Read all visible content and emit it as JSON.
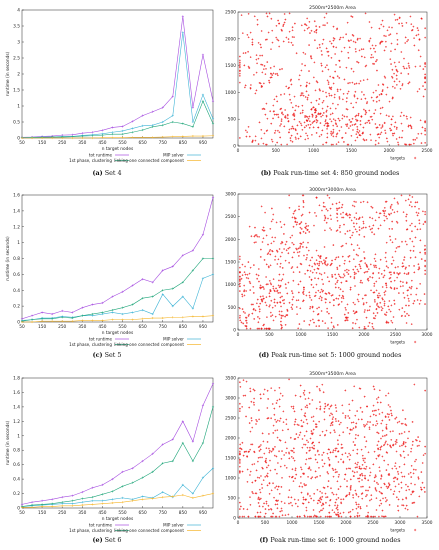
{
  "colors": {
    "tot_runtime": "#a54ce0",
    "mip_solver": "#3fb4d6",
    "clustering": "#20a67a",
    "linking": "#f5b52a",
    "targets": "#ee2222",
    "axis": "#222222"
  },
  "chart_data": [
    {
      "id": "runtime-set4",
      "type": "line",
      "caption_label": "(a)",
      "caption_text": "Set 4",
      "xlabel": "n target nodes",
      "ylabel": "runtime (in seconds)",
      "xlim": [
        50,
        1000
      ],
      "ylim": [
        0,
        4
      ],
      "xticks": [
        50,
        150,
        250,
        350,
        450,
        550,
        650,
        750,
        850,
        950
      ],
      "yticks": [
        0,
        0.5,
        1,
        1.5,
        2,
        2.5,
        3,
        3.5,
        4
      ],
      "ytick_labels": [
        "0",
        "0.5",
        "1",
        "1.5",
        "2",
        "2.5",
        "3",
        "3.5",
        "4"
      ],
      "x": [
        50,
        100,
        150,
        200,
        250,
        300,
        350,
        400,
        450,
        500,
        550,
        600,
        650,
        700,
        750,
        800,
        850,
        900,
        950,
        1000
      ],
      "legend": [
        "tot runtime",
        "MIP solver",
        "1st phase, clustering",
        "linking one connected component"
      ],
      "series": [
        {
          "name": "tot runtime",
          "color_key": "tot_runtime",
          "values": [
            0.02,
            0.03,
            0.05,
            0.06,
            0.09,
            0.1,
            0.15,
            0.18,
            0.24,
            0.33,
            0.36,
            0.52,
            0.7,
            0.82,
            0.95,
            1.3,
            3.8,
            0.95,
            2.6,
            1.15
          ]
        },
        {
          "name": "MIP solver",
          "color_key": "mip_solver",
          "values": [
            0.01,
            0.02,
            0.03,
            0.03,
            0.05,
            0.05,
            0.08,
            0.1,
            0.13,
            0.18,
            0.22,
            0.3,
            0.38,
            0.4,
            0.5,
            0.7,
            3.3,
            0.5,
            1.35,
            0.6
          ]
        },
        {
          "name": "1st phase, clustering",
          "color_key": "clustering",
          "values": [
            0.01,
            0.01,
            0.02,
            0.03,
            0.03,
            0.04,
            0.06,
            0.07,
            0.09,
            0.12,
            0.12,
            0.18,
            0.25,
            0.35,
            0.4,
            0.5,
            0.45,
            0.35,
            1.15,
            0.45
          ]
        },
        {
          "name": "linking one connected component",
          "color_key": "linking",
          "values": [
            0,
            0,
            0,
            0,
            0,
            0,
            0,
            0,
            0.01,
            0.01,
            0.01,
            0.02,
            0.02,
            0.02,
            0.03,
            0.04,
            0.05,
            0.06,
            0.06,
            0.07
          ]
        }
      ]
    },
    {
      "id": "targets-set4",
      "type": "scatter",
      "caption_label": "(b)",
      "caption_text": "Peak run-time set 4: 850 ground nodes",
      "title": "2500m*2500m Area",
      "legend": [
        "targets"
      ],
      "xlim": [
        0,
        2500
      ],
      "ylim": [
        0,
        2500
      ],
      "xticks": [
        0,
        500,
        1000,
        1500,
        2000,
        2500
      ],
      "yticks": [
        0,
        500,
        1000,
        1500,
        2000,
        2500
      ],
      "n_points": 850,
      "seed": 11,
      "clusters": [
        [
          450,
          2150
        ],
        [
          1000,
          2000
        ],
        [
          1500,
          1750
        ],
        [
          2150,
          2100
        ],
        [
          200,
          1400
        ],
        [
          1000,
          1200
        ],
        [
          1700,
          900
        ],
        [
          2300,
          1350
        ],
        [
          1300,
          700
        ],
        [
          700,
          650
        ],
        [
          450,
          300
        ],
        [
          1300,
          300
        ],
        [
          2250,
          300
        ],
        [
          1800,
          400
        ],
        [
          1000,
          350
        ]
      ]
    },
    {
      "id": "runtime-set5",
      "type": "line",
      "caption_label": "(c)",
      "caption_text": "Set 5",
      "xlabel": "n target nodes",
      "ylabel": "runtime (in seconds)",
      "xlim": [
        50,
        1000
      ],
      "ylim": [
        0,
        1.6
      ],
      "xticks": [
        50,
        150,
        250,
        350,
        450,
        550,
        650,
        750,
        850,
        950
      ],
      "yticks": [
        0,
        0.2,
        0.4,
        0.6,
        0.8,
        1,
        1.2,
        1.4,
        1.6
      ],
      "ytick_labels": [
        "0",
        "0.2",
        "0.4",
        "0.6",
        "0.8",
        "1",
        "1.2",
        "1.4",
        "1.6"
      ],
      "x": [
        50,
        100,
        150,
        200,
        250,
        300,
        350,
        400,
        450,
        500,
        550,
        600,
        650,
        700,
        750,
        800,
        850,
        900,
        950,
        1000
      ],
      "legend": [
        "tot runtime",
        "MIP solver",
        "1st phase, clustering",
        "linking one connected component"
      ],
      "series": [
        {
          "name": "tot runtime",
          "color_key": "tot_runtime",
          "values": [
            0.04,
            0.08,
            0.12,
            0.1,
            0.14,
            0.12,
            0.18,
            0.22,
            0.24,
            0.32,
            0.38,
            0.46,
            0.54,
            0.5,
            0.65,
            0.7,
            0.84,
            0.9,
            1.1,
            1.57
          ]
        },
        {
          "name": "MIP solver",
          "color_key": "mip_solver",
          "values": [
            0.02,
            0.03,
            0.05,
            0.05,
            0.07,
            0.06,
            0.08,
            0.08,
            0.1,
            0.12,
            0.1,
            0.12,
            0.15,
            0.1,
            0.35,
            0.2,
            0.32,
            0.17,
            0.55,
            0.6
          ]
        },
        {
          "name": "1st phase, clustering",
          "color_key": "clustering",
          "values": [
            0.01,
            0.03,
            0.04,
            0.04,
            0.06,
            0.05,
            0.08,
            0.1,
            0.12,
            0.15,
            0.18,
            0.22,
            0.3,
            0.32,
            0.4,
            0.42,
            0.5,
            0.65,
            0.8,
            0.8
          ]
        },
        {
          "name": "linking one connected component",
          "color_key": "linking",
          "values": [
            0,
            0,
            0.01,
            0.01,
            0.01,
            0.01,
            0.02,
            0.02,
            0.02,
            0.03,
            0.03,
            0.03,
            0.04,
            0.05,
            0.05,
            0.06,
            0.06,
            0.07,
            0.07,
            0.08
          ]
        }
      ]
    },
    {
      "id": "targets-set5",
      "type": "scatter",
      "caption_label": "(d)",
      "caption_text": "Peak run-time set 5: 1000 ground nodes",
      "title": "3000m*3000m Area",
      "legend": [
        "targets"
      ],
      "xlim": [
        0,
        3000
      ],
      "ylim": [
        0,
        3000
      ],
      "xticks": [
        0,
        500,
        1000,
        1500,
        2000,
        2500,
        3000
      ],
      "yticks": [
        0,
        500,
        1000,
        1500,
        2000,
        2500,
        3000
      ],
      "n_points": 1000,
      "seed": 23,
      "clusters": [
        [
          650,
          2050
        ],
        [
          1300,
          2550
        ],
        [
          1900,
          2450
        ],
        [
          2650,
          2550
        ],
        [
          300,
          1100
        ],
        [
          1000,
          1500
        ],
        [
          1650,
          1500
        ],
        [
          2250,
          1250
        ],
        [
          2700,
          1650
        ],
        [
          700,
          700
        ],
        [
          1350,
          450
        ],
        [
          2100,
          400
        ],
        [
          2600,
          700
        ],
        [
          400,
          300
        ],
        [
          1400,
          1050
        ]
      ]
    },
    {
      "id": "runtime-set6",
      "type": "line",
      "caption_label": "(e)",
      "caption_text": "Set 6",
      "xlabel": "n target nodes",
      "ylabel": "runtime (in seconds)",
      "xlim": [
        50,
        1000
      ],
      "ylim": [
        0,
        1.8
      ],
      "xticks": [
        50,
        150,
        250,
        350,
        450,
        550,
        650,
        750,
        850,
        950
      ],
      "yticks": [
        0,
        0.2,
        0.4,
        0.6,
        0.8,
        1,
        1.2,
        1.4,
        1.6,
        1.8
      ],
      "ytick_labels": [
        "0",
        "0.2",
        "0.4",
        "0.6",
        "0.8",
        "1",
        "1.2",
        "1.4",
        "1.6",
        "1.8"
      ],
      "x": [
        50,
        100,
        150,
        200,
        250,
        300,
        350,
        400,
        450,
        500,
        550,
        600,
        650,
        700,
        750,
        800,
        850,
        900,
        950,
        1000
      ],
      "legend": [
        "tot runtime",
        "MIP solver",
        "1st phase, clustering",
        "linking one connected component"
      ],
      "series": [
        {
          "name": "tot runtime",
          "color_key": "tot_runtime",
          "values": [
            0.05,
            0.08,
            0.1,
            0.12,
            0.15,
            0.17,
            0.22,
            0.28,
            0.32,
            0.4,
            0.5,
            0.55,
            0.65,
            0.75,
            0.88,
            0.95,
            1.2,
            0.92,
            1.42,
            1.72
          ]
        },
        {
          "name": "MIP solver",
          "color_key": "mip_solver",
          "values": [
            0.02,
            0.03,
            0.04,
            0.05,
            0.06,
            0.06,
            0.08,
            0.1,
            0.1,
            0.12,
            0.14,
            0.12,
            0.16,
            0.14,
            0.22,
            0.15,
            0.32,
            0.2,
            0.42,
            0.55
          ]
        },
        {
          "name": "1st phase, clustering",
          "color_key": "clustering",
          "values": [
            0.02,
            0.04,
            0.05,
            0.06,
            0.08,
            0.1,
            0.13,
            0.15,
            0.19,
            0.23,
            0.3,
            0.35,
            0.42,
            0.5,
            0.62,
            0.65,
            0.9,
            0.65,
            0.9,
            1.4
          ]
        },
        {
          "name": "linking one connected component",
          "color_key": "linking",
          "values": [
            0.01,
            0.01,
            0.02,
            0.02,
            0.03,
            0.03,
            0.04,
            0.05,
            0.06,
            0.07,
            0.08,
            0.1,
            0.12,
            0.13,
            0.15,
            0.16,
            0.18,
            0.14,
            0.17,
            0.2
          ]
        }
      ]
    },
    {
      "id": "targets-set6",
      "type": "scatter",
      "caption_label": "(f)",
      "caption_text": "Peak run-time set 6: 1000 ground nodes",
      "title": "3500m*3500m Area",
      "legend": [
        "targets"
      ],
      "xlim": [
        0,
        3500
      ],
      "ylim": [
        0,
        3500
      ],
      "xticks": [
        0,
        500,
        1000,
        1500,
        2000,
        2500,
        3000,
        3500
      ],
      "yticks": [
        0,
        500,
        1000,
        1500,
        2000,
        2500,
        3000,
        3500
      ],
      "n_points": 1000,
      "seed": 37,
      "clusters": [
        [
          400,
          2800
        ],
        [
          1400,
          2700
        ],
        [
          2400,
          2800
        ],
        [
          900,
          2000
        ],
        [
          1800,
          2100
        ],
        [
          2700,
          2100
        ],
        [
          300,
          1400
        ],
        [
          1300,
          1400
        ],
        [
          2200,
          1400
        ],
        [
          3000,
          1700
        ],
        [
          700,
          700
        ],
        [
          1600,
          800
        ],
        [
          2500,
          800
        ],
        [
          3000,
          800
        ],
        [
          400,
          200
        ],
        [
          1500,
          150
        ],
        [
          2300,
          250
        ]
      ]
    }
  ]
}
